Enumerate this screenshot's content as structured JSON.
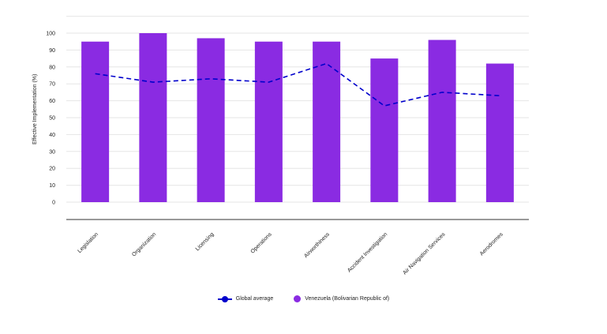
{
  "chart_data": {
    "type": "bar",
    "categories": [
      "Legislation",
      "Organization",
      "Licensing",
      "Operations",
      "Airworthiness",
      "Accident Investigation",
      "Air Navigation Services",
      "Aerodromes"
    ],
    "series": [
      {
        "name": "Global average",
        "type": "line",
        "values": [
          76,
          71,
          73,
          71,
          82,
          57,
          65,
          63
        ]
      },
      {
        "name": "Venezuela (Bolivarian Republic of)",
        "type": "bar",
        "values": [
          95,
          100,
          97,
          95,
          95,
          85,
          96,
          82
        ]
      }
    ],
    "ylabel": "Effective Implementation (%)",
    "yticks": [
      0,
      10,
      20,
      30,
      40,
      50,
      60,
      70,
      80,
      90,
      100
    ],
    "ylim": [
      0,
      110
    ],
    "grid": true,
    "legend": "bottom",
    "colors": {
      "bar": "#8a2be2",
      "line": "#0000cc",
      "grid": "#e6e6e6",
      "axis": "#333333"
    }
  }
}
